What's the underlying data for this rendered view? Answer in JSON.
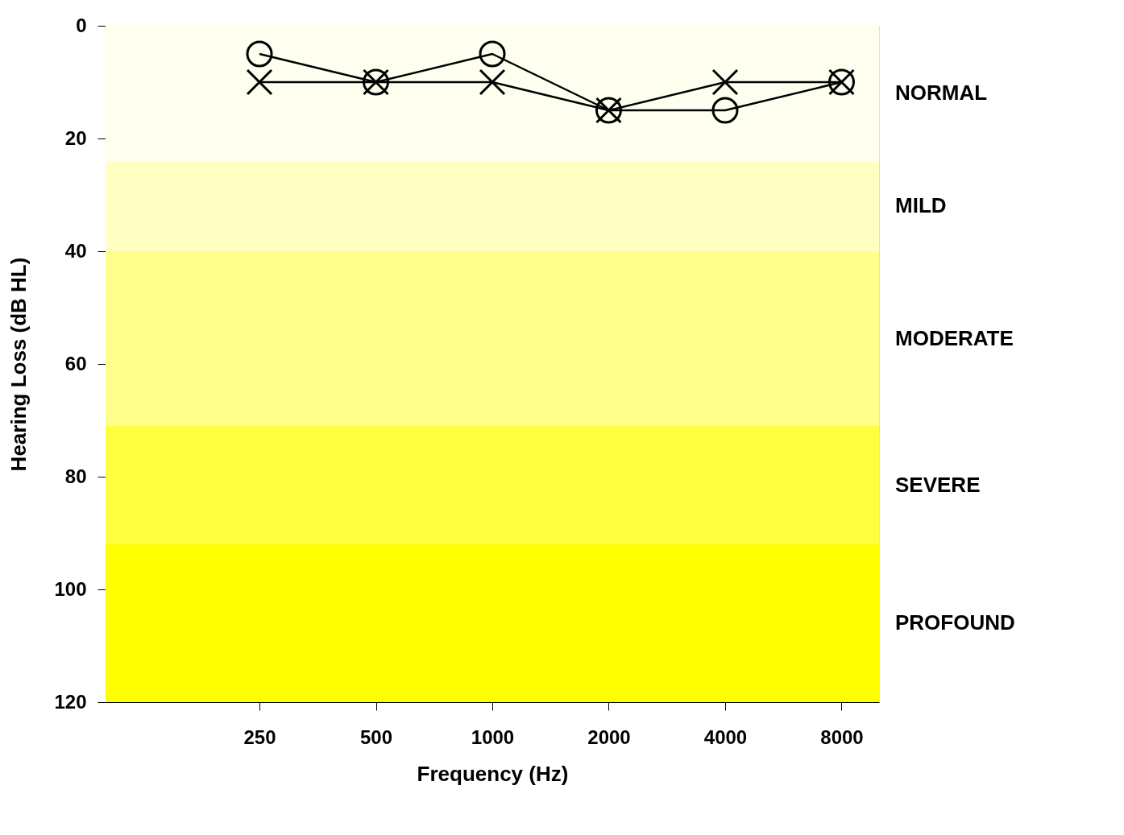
{
  "chart_data": {
    "type": "line",
    "xlabel": "Frequency (Hz)",
    "ylabel": "Hearing Loss (dB HL)",
    "x": [
      250,
      500,
      1000,
      2000,
      4000,
      8000
    ],
    "series": [
      {
        "color": "#000000",
        "marker": "circle",
        "values": [
          5,
          10,
          5,
          15,
          15,
          10
        ]
      },
      {
        "color": "#000000",
        "marker": "cross",
        "values": [
          10,
          10,
          10,
          15,
          10,
          10
        ]
      }
    ],
    "log": "x",
    "xlim": [
      100,
      10000
    ],
    "xticks": [
      250,
      500,
      1000,
      2000,
      4000,
      8000
    ],
    "ylim": [
      120,
      0
    ],
    "yticks": [
      0,
      20,
      40,
      60,
      80,
      100,
      120
    ],
    "bands": [
      {
        "axis": "y",
        "from": 0,
        "to": 24,
        "label": "NORMAL",
        "color": "#fffff0"
      },
      {
        "axis": "y",
        "from": 24,
        "to": 40,
        "label": "MILD",
        "color": "#ffffc4"
      },
      {
        "axis": "y",
        "from": 40,
        "to": 71,
        "label": "MODERATE",
        "color": "#ffff8c"
      },
      {
        "axis": "y",
        "from": 71,
        "to": 92,
        "label": "SEVERE",
        "color": "#ffff40"
      },
      {
        "axis": "y",
        "from": 92,
        "to": 120,
        "label": "PROFOUND",
        "color": "#ffff00"
      }
    ],
    "line_style": "solid"
  }
}
